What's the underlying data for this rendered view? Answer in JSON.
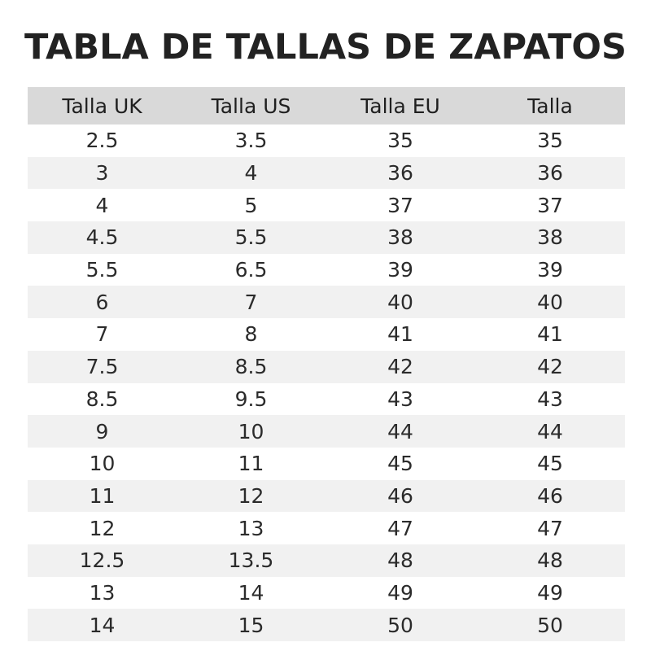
{
  "title": "TABLA DE TALLAS DE ZAPATOS",
  "table": {
    "headers": [
      "Talla UK",
      "Talla US",
      "Talla EU",
      "Talla"
    ],
    "rows": [
      [
        "2.5",
        "3.5",
        "35",
        "35"
      ],
      [
        "3",
        "4",
        "36",
        "36"
      ],
      [
        "4",
        "5",
        "37",
        "37"
      ],
      [
        "4.5",
        "5.5",
        "38",
        "38"
      ],
      [
        "5.5",
        "6.5",
        "39",
        "39"
      ],
      [
        "6",
        "7",
        "40",
        "40"
      ],
      [
        "7",
        "8",
        "41",
        "41"
      ],
      [
        "7.5",
        "8.5",
        "42",
        "42"
      ],
      [
        "8.5",
        "9.5",
        "43",
        "43"
      ],
      [
        "9",
        "10",
        "44",
        "44"
      ],
      [
        "10",
        "11",
        "45",
        "45"
      ],
      [
        "11",
        "12",
        "46",
        "46"
      ],
      [
        "12",
        "13",
        "47",
        "47"
      ],
      [
        "12.5",
        "13.5",
        "48",
        "48"
      ],
      [
        "13",
        "14",
        "49",
        "49"
      ],
      [
        "14",
        "15",
        "50",
        "50"
      ]
    ]
  },
  "colors": {
    "header_background": "#d9d9d9",
    "stripe_background": "#f1f1f1",
    "text": "#222222"
  }
}
